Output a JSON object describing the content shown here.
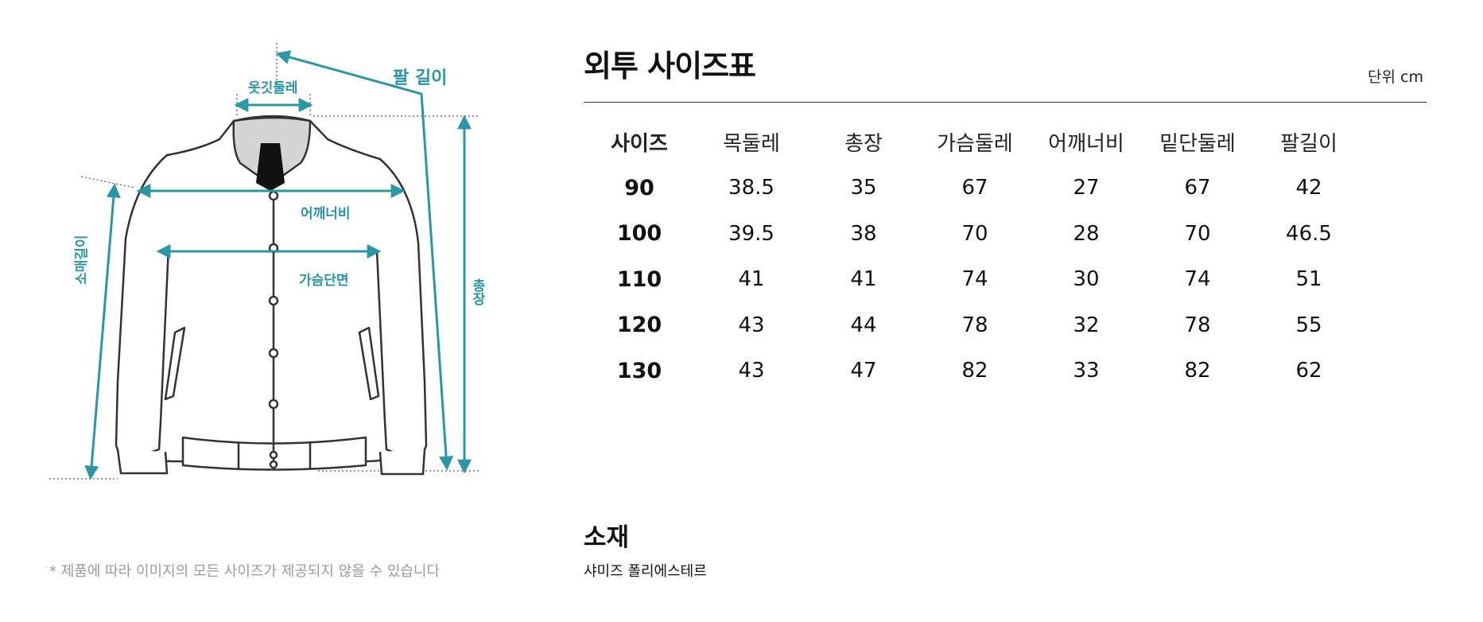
{
  "diagram": {
    "labels": {
      "collar": "옷깃둘레",
      "arm_length": "팔 길이",
      "shoulder": "어깨너비",
      "chest": "가슴단면",
      "total_length": "총장",
      "sleeve_length": "소매길이"
    },
    "accent_color": "#2a96a6",
    "disclaimer": "* 제품에 따라 이미지의 모든 사이즈가 제공되지 않을 수 있습니다"
  },
  "size_chart": {
    "title": "외투 사이즈표",
    "unit": "단위 cm",
    "headers": [
      "사이즈",
      "목둘레",
      "총장",
      "가슴둘레",
      "어깨너비",
      "밑단둘레",
      "팔길이"
    ],
    "rows": [
      [
        "90",
        "38.5",
        "35",
        "67",
        "27",
        "67",
        "42"
      ],
      [
        "100",
        "39.5",
        "38",
        "70",
        "28",
        "70",
        "46.5"
      ],
      [
        "110",
        "41",
        "41",
        "74",
        "30",
        "74",
        "51"
      ],
      [
        "120",
        "43",
        "44",
        "78",
        "32",
        "78",
        "55"
      ],
      [
        "130",
        "43",
        "47",
        "82",
        "33",
        "82",
        "62"
      ]
    ]
  },
  "material": {
    "title": "소재",
    "value": "샤미즈 폴리에스테르"
  }
}
